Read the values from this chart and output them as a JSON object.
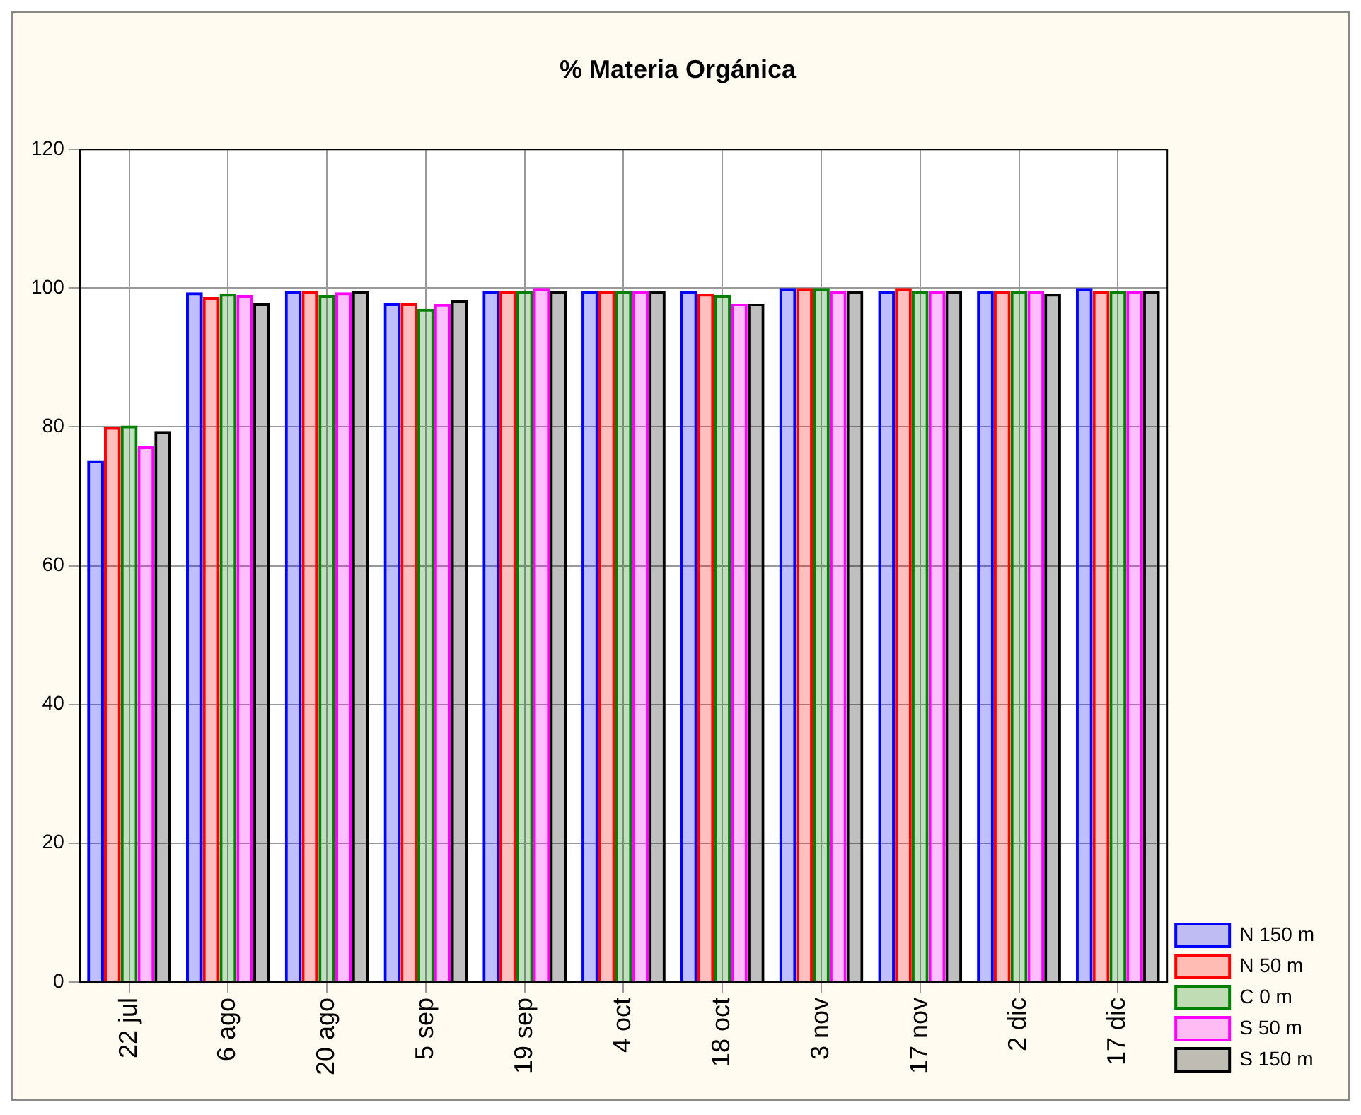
{
  "chart_data": {
    "type": "bar",
    "title": "% Materia Orgánica",
    "categories": [
      "22 jul",
      "6 ago",
      "20 ago",
      "5 sep",
      "19 sep",
      "4 oct",
      "18 oct",
      "3 nov",
      "17 nov",
      "2 dic",
      "17 dic"
    ],
    "series": [
      {
        "name": "N 150 m",
        "color": "#0000ff",
        "values": [
          75.2,
          99.4,
          99.6,
          97.9,
          99.6,
          99.6,
          99.6,
          100,
          99.6,
          99.6,
          100
        ]
      },
      {
        "name": "N 50 m",
        "color": "#ff0000",
        "values": [
          80,
          98.7,
          99.6,
          97.9,
          99.6,
          99.6,
          99.2,
          100,
          100,
          99.6,
          99.6
        ]
      },
      {
        "name": "C 0 m",
        "color": "#008000",
        "values": [
          80.2,
          99.2,
          99,
          97,
          99.6,
          99.6,
          99,
          100,
          99.6,
          99.6,
          99.6
        ]
      },
      {
        "name": "S 50 m",
        "color": "#ff00ff",
        "values": [
          77.3,
          99,
          99.4,
          97.7,
          100,
          99.6,
          97.8,
          99.6,
          99.6,
          99.6,
          99.6
        ]
      },
      {
        "name": "S 150 m",
        "color": "#000000",
        "values": [
          79.4,
          97.9,
          99.6,
          98.3,
          99.6,
          99.6,
          97.8,
          99.6,
          99.6,
          99.2,
          99.6
        ]
      }
    ],
    "ylim": [
      0,
      120
    ],
    "yticks": [
      0,
      20,
      40,
      60,
      80,
      100,
      120
    ],
    "grid": true,
    "legend": "bottom right"
  }
}
